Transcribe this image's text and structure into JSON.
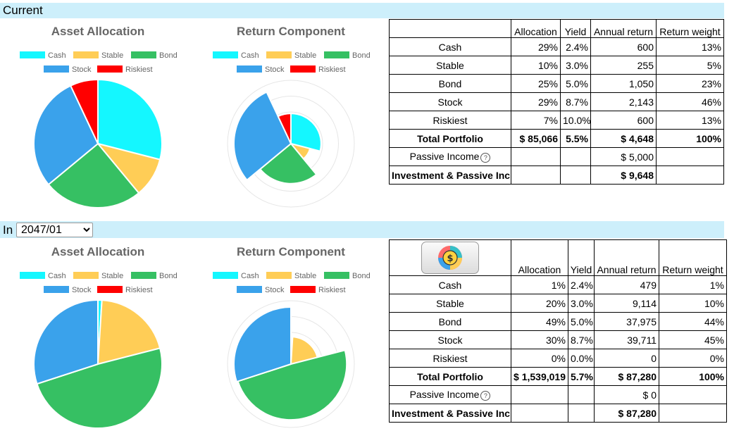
{
  "sections": {
    "current_title": "Current",
    "future_prefix": "In",
    "future_date": "2047/01"
  },
  "charts": {
    "asset_title": "Asset Allocation",
    "return_title": "Return Component"
  },
  "colors": {
    "Cash": "#14f7ff",
    "Stable": "#ffcd56",
    "Bond": "#36c063",
    "Stock": "#3aa2eb",
    "Riskiest": "#ff0000"
  },
  "table_headers": {
    "allocation": "Allocation",
    "yield": "Yield",
    "annual_return": "Annual return",
    "return_weight": "Return weight"
  },
  "current_table": {
    "rows": [
      {
        "label": "Cash",
        "allocation": "29%",
        "yield": "2.4%",
        "annual_return": "600",
        "return_weight": "13%"
      },
      {
        "label": "Stable",
        "allocation": "10%",
        "yield": "3.0%",
        "annual_return": "255",
        "return_weight": "5%"
      },
      {
        "label": "Bond",
        "allocation": "25%",
        "yield": "5.0%",
        "annual_return": "1,050",
        "return_weight": "23%"
      },
      {
        "label": "Stock",
        "allocation": "29%",
        "yield": "8.7%",
        "annual_return": "2,143",
        "return_weight": "46%"
      },
      {
        "label": "Riskiest",
        "allocation": "7%",
        "yield": "10.0%",
        "annual_return": "600",
        "return_weight": "13%"
      }
    ],
    "total": {
      "label": "Total Portfolio",
      "allocation": "$ 85,066",
      "yield": "5.5%",
      "annual_return": "$ 4,648",
      "return_weight": "100%"
    },
    "passive": {
      "label": "Passive Income",
      "annual_return": "$ 5,000"
    },
    "invest": {
      "label": "Investment & Passive Inc.",
      "annual_return": "$ 9,648"
    }
  },
  "future_table": {
    "rows": [
      {
        "label": "Cash",
        "allocation": "1%",
        "yield": "2.4%",
        "annual_return": "479",
        "return_weight": "1%"
      },
      {
        "label": "Stable",
        "allocation": "20%",
        "yield": "3.0%",
        "annual_return": "9,114",
        "return_weight": "10%"
      },
      {
        "label": "Bond",
        "allocation": "49%",
        "yield": "5.0%",
        "annual_return": "37,975",
        "return_weight": "44%"
      },
      {
        "label": "Stock",
        "allocation": "30%",
        "yield": "8.7%",
        "annual_return": "39,711",
        "return_weight": "45%"
      },
      {
        "label": "Riskiest",
        "allocation": "0%",
        "yield": "0.0%",
        "annual_return": "0",
        "return_weight": "0%"
      }
    ],
    "total": {
      "label": "Total Portfolio",
      "allocation": "$ 1,539,019",
      "yield": "5.7%",
      "annual_return": "$ 87,280",
      "return_weight": "100%"
    },
    "passive": {
      "label": "Passive Income",
      "annual_return": "$ 0"
    },
    "invest": {
      "label": "Investment & Passive Inc.",
      "annual_return": "$ 87,280"
    }
  },
  "chart_data": [
    {
      "type": "pie",
      "title": "Asset Allocation",
      "period": "Current",
      "categories": [
        "Cash",
        "Stable",
        "Bond",
        "Stock",
        "Riskiest"
      ],
      "values": [
        29,
        10,
        25,
        29,
        7
      ],
      "legend": "top"
    },
    {
      "type": "polarArea",
      "title": "Return Component",
      "period": "Current",
      "categories": [
        "Cash",
        "Stable",
        "Bond",
        "Stock",
        "Riskiest"
      ],
      "values": [
        600,
        255,
        1050,
        2143,
        600
      ],
      "weights": [
        29,
        10,
        25,
        29,
        7
      ],
      "legend": "top"
    },
    {
      "type": "pie",
      "title": "Asset Allocation",
      "period": "2047/01",
      "categories": [
        "Cash",
        "Stable",
        "Bond",
        "Stock",
        "Riskiest"
      ],
      "values": [
        1,
        20,
        49,
        30,
        0
      ],
      "legend": "top"
    },
    {
      "type": "polarArea",
      "title": "Return Component",
      "period": "2047/01",
      "categories": [
        "Cash",
        "Stable",
        "Bond",
        "Stock",
        "Riskiest"
      ],
      "values": [
        479,
        9114,
        37975,
        39711,
        0
      ],
      "weights": [
        1,
        20,
        49,
        30,
        0
      ],
      "legend": "top"
    }
  ]
}
